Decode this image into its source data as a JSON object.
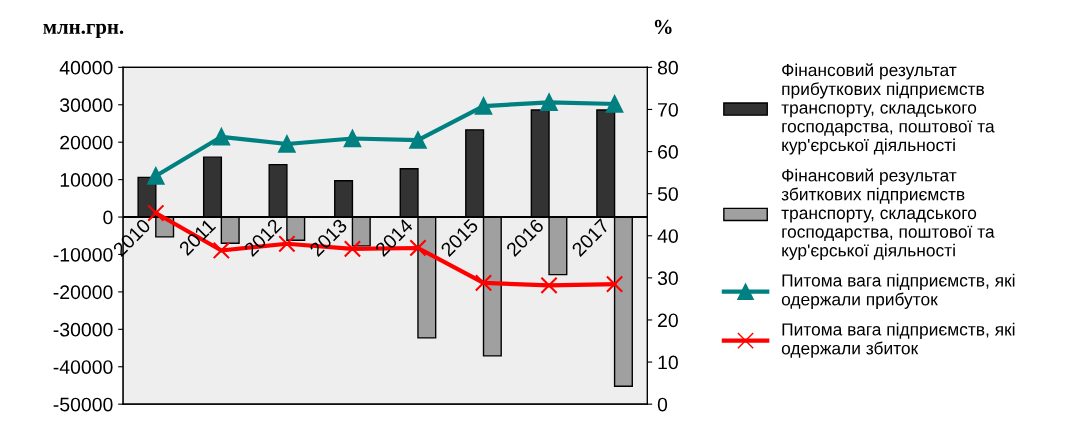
{
  "chart_data": {
    "type": "bar",
    "ylabel": "млн.грн.",
    "y2label": "%",
    "categories": [
      "2010",
      "2011",
      "2012",
      "2013",
      "2014",
      "2015",
      "2016",
      "2017"
    ],
    "series": [
      {
        "name": "Фінансовий результат\nприбуткових підприємств\nтранспорту, складського\nгосподарства, поштової та\nкур'єрської діяльності",
        "color": "#333333",
        "values": [
          10600,
          16000,
          14000,
          9700,
          12900,
          23300,
          28600,
          28600
        ]
      },
      {
        "name": "Фінансовий результат\nзбиткових підприємств\nтранспорту, складського\nгосподарства, поштової та\nкур'єрської діяльності",
        "color": "#a0a0a0",
        "values": [
          -5300,
          -7000,
          -6200,
          -7700,
          -32300,
          -37100,
          -15400,
          -45200
        ]
      },
      {
        "name": "Питома вага підприємств, які\nодержали прибуток",
        "type": "line",
        "axis": "y2",
        "marker": "triangle",
        "color": "#008080",
        "values": [
          54.2,
          63.5,
          61.8,
          63.1,
          62.7,
          70.8,
          71.7,
          71.3
        ]
      },
      {
        "name": "Питома вага підприємств, які\nодержали збиток",
        "type": "line",
        "axis": "y2",
        "marker": "cross",
        "color": "#ff0000",
        "values": [
          45.4,
          36.5,
          38.1,
          36.9,
          37.1,
          28.8,
          28.2,
          28.5
        ]
      }
    ],
    "ylim": [
      -50000,
      40000
    ],
    "yticks": [
      -50000,
      -40000,
      -30000,
      -20000,
      -10000,
      0,
      10000,
      20000,
      30000,
      40000
    ],
    "y2lim": [
      0,
      80
    ],
    "y2ticks": [
      0,
      10,
      20,
      30,
      40,
      50,
      60,
      70,
      80
    ],
    "legend": "right",
    "grid": false
  }
}
